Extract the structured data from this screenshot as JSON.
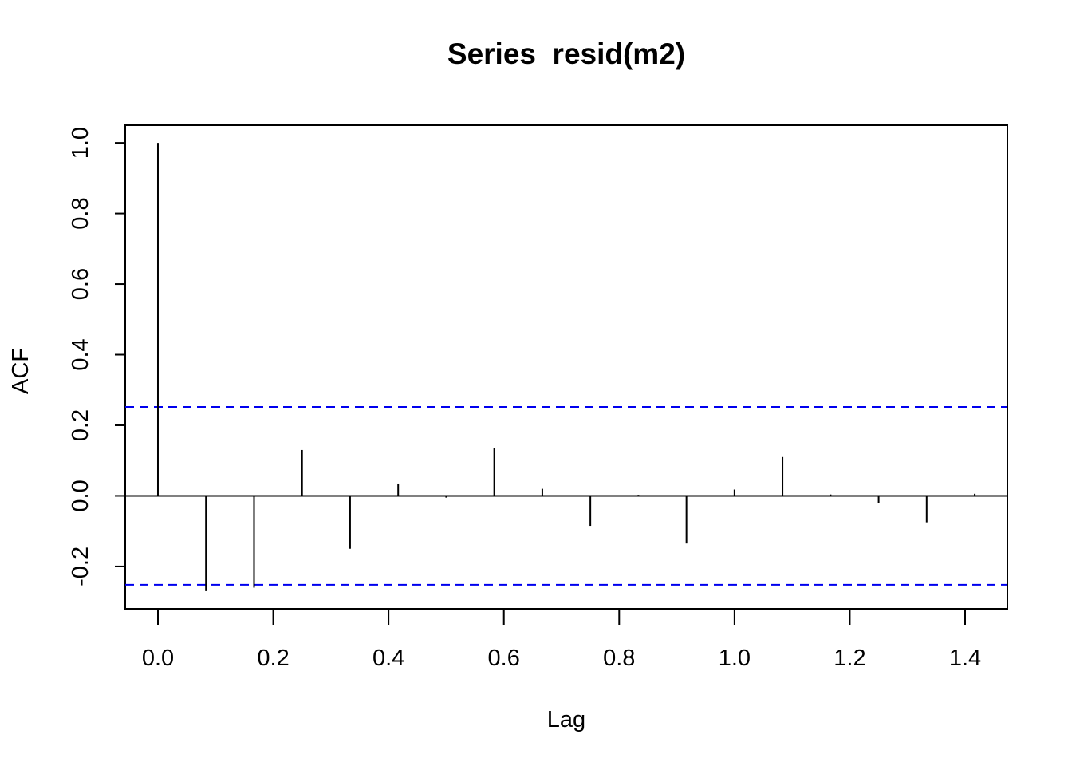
{
  "chart_data": {
    "type": "bar",
    "title": "Series  resid(m2)",
    "xlabel": "Lag",
    "ylabel": "ACF",
    "xlim": [
      -0.0567,
      1.4733
    ],
    "ylim": [
      -0.32,
      1.05
    ],
    "x_ticks": [
      "0.0",
      "0.2",
      "0.4",
      "0.6",
      "0.8",
      "1.0",
      "1.2",
      "1.4"
    ],
    "y_ticks": [
      "-0.2",
      "0.0",
      "0.2",
      "0.4",
      "0.6",
      "0.8",
      "1.0"
    ],
    "lags": [
      0.0,
      0.0833,
      0.1667,
      0.25,
      0.3333,
      0.4167,
      0.5,
      0.5833,
      0.6667,
      0.75,
      0.8333,
      0.9167,
      1.0,
      1.0833,
      1.1667,
      1.25,
      1.3333,
      1.4167
    ],
    "values": [
      1.0,
      -0.27,
      -0.26,
      0.13,
      -0.15,
      0.035,
      -0.005,
      0.135,
      0.02,
      -0.085,
      0.003,
      -0.135,
      0.018,
      0.11,
      0.004,
      -0.02,
      -0.075,
      0.006
    ],
    "confidence_bound": 0.252,
    "confidence_color": "#0000ee",
    "bar_color": "#000000",
    "grid": false
  }
}
